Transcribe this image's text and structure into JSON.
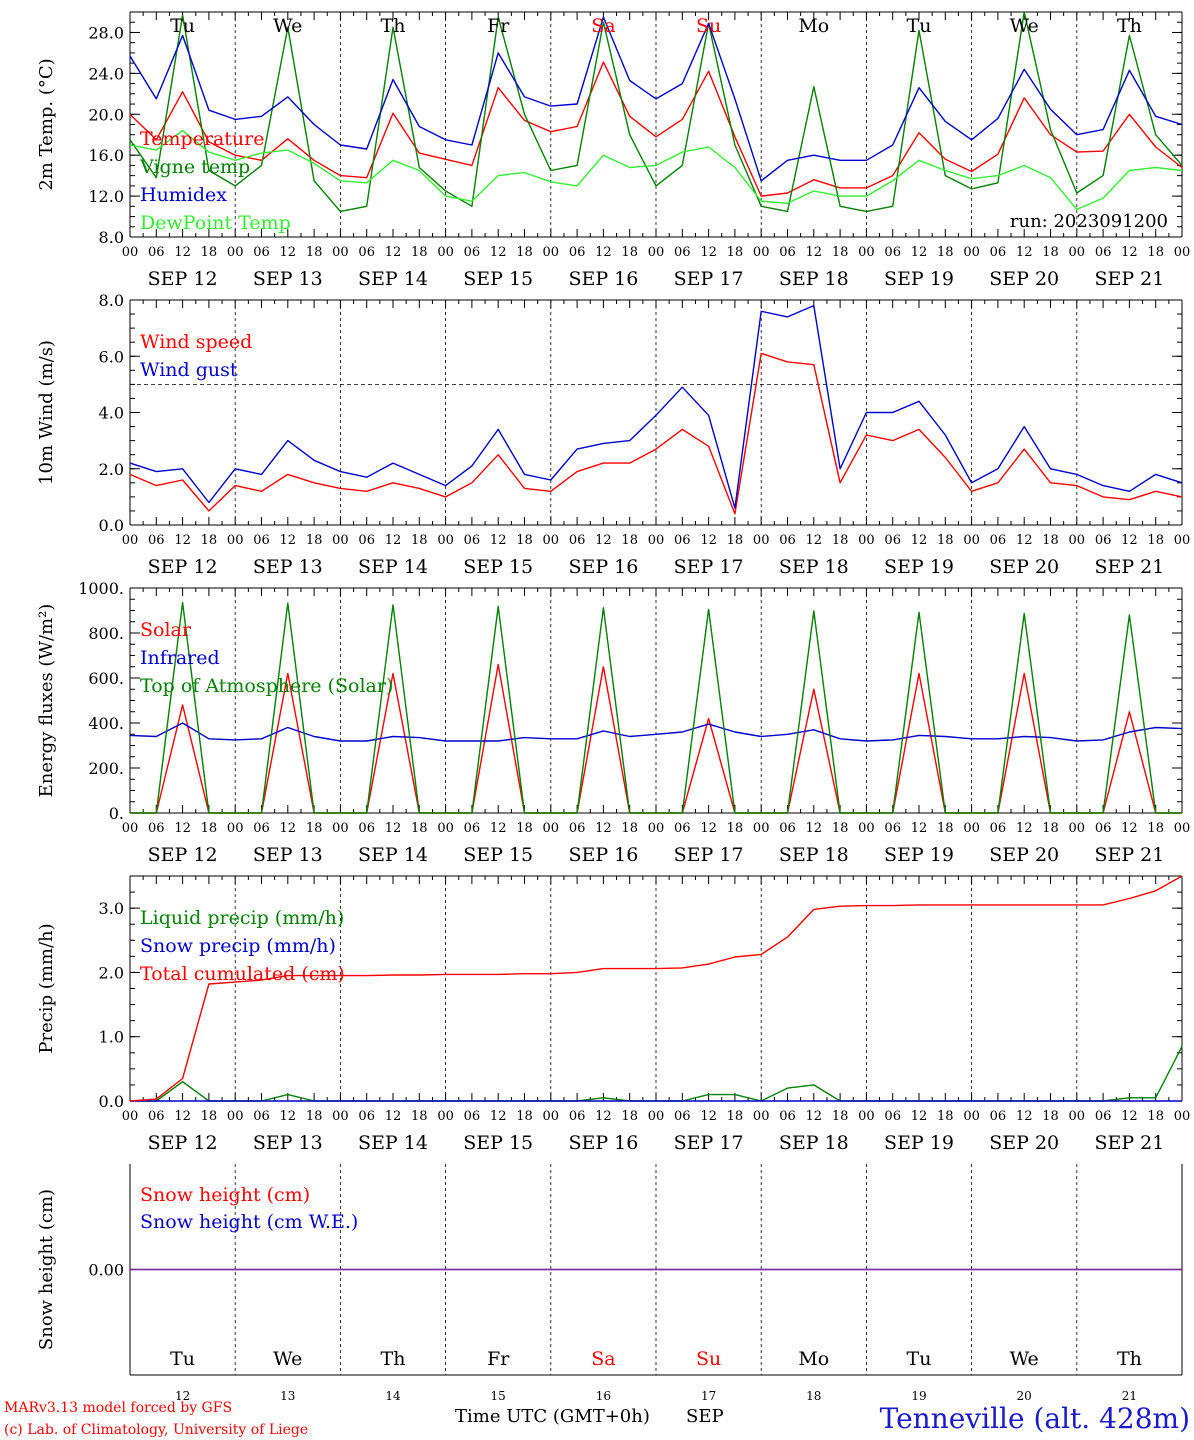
{
  "days": {
    "dates": [
      "SEP 12",
      "SEP 13",
      "SEP 14",
      "SEP 15",
      "SEP 16",
      "SEP 17",
      "SEP 18",
      "SEP 19",
      "SEP 20",
      "SEP 21"
    ],
    "weekdays": [
      "Tu",
      "We",
      "Th",
      "Fr",
      "Sa",
      "Su",
      "Mo",
      "Tu",
      "We",
      "Th"
    ],
    "weekend_flags": [
      false,
      false,
      false,
      false,
      true,
      true,
      false,
      false,
      false,
      false
    ],
    "day_numbers": [
      "12",
      "13",
      "14",
      "15",
      "16",
      "17",
      "18",
      "19",
      "20",
      "21"
    ],
    "hour_labels": [
      "00",
      "06",
      "12",
      "18"
    ],
    "end_hour_label": "00",
    "month_label": "SEP"
  },
  "colors": {
    "red": "#ff0000",
    "green": "#008000",
    "blue": "#0000cc",
    "lightgreen": "#33ee33",
    "purple": "#8030a0",
    "title_blue": "#1a1acc"
  },
  "run_label": "run: 2023091200",
  "footer": {
    "credit1": "MARv3.13 model forced by GFS",
    "credit2": "(c) Lab. of Climatology, University of Liege",
    "xlabel": "Time UTC (GMT+0h)",
    "station": "Tenneville (alt. 428m)"
  },
  "chart_data": [
    {
      "type": "line",
      "id": "temp",
      "ylabel": "2m Temp. (°C)",
      "ylim": [
        8,
        30
      ],
      "yticks": [
        8,
        12,
        16,
        20,
        24,
        28
      ],
      "ytick_labels": [
        "8.0",
        "12.0",
        "16.0",
        "20.0",
        "24.0",
        "28.0"
      ],
      "x_hours": [
        0,
        6,
        12,
        18,
        24,
        30,
        36,
        42,
        48,
        54,
        60,
        66,
        72,
        78,
        84,
        90,
        96,
        102,
        108,
        114,
        120,
        126,
        132,
        138,
        144,
        150,
        156,
        162,
        168,
        174,
        180,
        186,
        192,
        198,
        204,
        210,
        216,
        222,
        228,
        234,
        240
      ],
      "series": [
        {
          "name": "Temperature",
          "color": "red",
          "values": [
            20,
            17.5,
            22.2,
            17.3,
            16,
            15.5,
            17.6,
            15.5,
            14,
            13.8,
            20.1,
            16.2,
            15.6,
            15,
            22.6,
            19.4,
            18.3,
            18.8,
            25.1,
            19.8,
            17.8,
            19.5,
            24.2,
            17.8,
            12,
            12.3,
            13.6,
            12.8,
            12.8,
            14,
            18.2,
            15.6,
            14.4,
            16.1,
            21.6,
            18,
            16.3,
            16.4,
            20,
            16.8,
            14.8
          ]
        },
        {
          "name": "Vigne temp",
          "color": "green",
          "values": [
            17.5,
            13.8,
            29.7,
            14.5,
            13,
            15,
            28.5,
            13.5,
            10.5,
            11,
            28.5,
            14.8,
            12.5,
            11,
            29.5,
            20,
            14.5,
            15,
            29,
            18,
            13,
            15,
            28.9,
            17,
            11,
            10.5,
            22.7,
            11,
            10.5,
            11,
            28.2,
            14,
            12.7,
            13.3,
            30,
            18.5,
            12.3,
            14,
            27.7,
            18,
            15
          ]
        },
        {
          "name": "Humidex",
          "color": "blue",
          "values": [
            25.7,
            21.5,
            27.7,
            20.4,
            19.5,
            19.8,
            21.7,
            19,
            17,
            16.6,
            23.4,
            18.8,
            17.5,
            17,
            26,
            21.7,
            20.8,
            21,
            29.5,
            23.3,
            21.5,
            23,
            28.9,
            21.5,
            13.5,
            15.5,
            16,
            15.5,
            15.5,
            17,
            22.6,
            19.3,
            17.5,
            19.6,
            24.4,
            20.5,
            18,
            18.5,
            24.3,
            19.8,
            19
          ]
        },
        {
          "name": "DewPoint Temp",
          "color": "lightgreen",
          "values": [
            17,
            16.5,
            18.4,
            16.3,
            15.5,
            16.2,
            16.5,
            15.2,
            13.5,
            13.3,
            15.5,
            14.5,
            12,
            11.5,
            14,
            14.3,
            13.4,
            13,
            16,
            14.8,
            15,
            16.3,
            16.8,
            14.8,
            11.5,
            11.3,
            12.5,
            12,
            12,
            13.5,
            15.5,
            14.5,
            13.7,
            14,
            15,
            13.8,
            10.7,
            11.8,
            14.5,
            14.8,
            14.5
          ]
        }
      ]
    },
    {
      "type": "line",
      "id": "wind",
      "ylabel": "10m Wind (m/s)",
      "ylim": [
        0,
        8
      ],
      "yticks": [
        0,
        2,
        4,
        6,
        8
      ],
      "ytick_labels": [
        "0.0",
        "2.0",
        "4.0",
        "6.0",
        "8.0"
      ],
      "reference_line": 5,
      "x_hours": [
        0,
        6,
        12,
        18,
        24,
        30,
        36,
        42,
        48,
        54,
        60,
        66,
        72,
        78,
        84,
        90,
        96,
        102,
        108,
        114,
        120,
        126,
        132,
        138,
        144,
        150,
        156,
        162,
        168,
        174,
        180,
        186,
        192,
        198,
        204,
        210,
        216,
        222,
        228,
        234,
        240
      ],
      "series": [
        {
          "name": "Wind speed",
          "color": "red",
          "values": [
            1.8,
            1.4,
            1.6,
            0.5,
            1.4,
            1.2,
            1.8,
            1.5,
            1.3,
            1.2,
            1.5,
            1.3,
            1,
            1.5,
            2.5,
            1.3,
            1.2,
            1.9,
            2.2,
            2.2,
            2.7,
            3.4,
            2.8,
            0.4,
            6.1,
            5.8,
            5.7,
            1.5,
            3.2,
            3,
            3.4,
            2.4,
            1.2,
            1.5,
            2.7,
            1.5,
            1.4,
            1,
            0.9,
            1.2,
            1
          ]
        },
        {
          "name": "Wind gust",
          "color": "blue",
          "values": [
            2.2,
            1.9,
            2,
            0.8,
            2,
            1.8,
            3,
            2.3,
            1.9,
            1.7,
            2.2,
            1.8,
            1.4,
            2.1,
            3.4,
            1.8,
            1.6,
            2.7,
            2.9,
            3,
            3.9,
            4.9,
            3.9,
            0.6,
            7.6,
            7.4,
            7.8,
            2,
            4,
            4,
            4.4,
            3.2,
            1.5,
            2,
            3.5,
            2,
            1.8,
            1.4,
            1.2,
            1.8,
            1.5
          ]
        }
      ]
    },
    {
      "type": "line",
      "id": "energy",
      "ylabel": "Energy fluxes (W/m²)",
      "ylim": [
        0,
        1000
      ],
      "yticks": [
        0,
        200,
        400,
        600,
        800,
        1000
      ],
      "ytick_labels": [
        "0.",
        "200.",
        "400.",
        "600.",
        "800.",
        "1000."
      ],
      "x_hours": [
        0,
        6,
        12,
        18,
        24,
        30,
        36,
        42,
        48,
        54,
        60,
        66,
        72,
        78,
        84,
        90,
        96,
        102,
        108,
        114,
        120,
        126,
        132,
        138,
        144,
        150,
        156,
        162,
        168,
        174,
        180,
        186,
        192,
        198,
        204,
        210,
        216,
        222,
        228,
        234,
        240
      ],
      "series": [
        {
          "name": "Solar",
          "color": "red",
          "values": [
            0,
            0,
            480,
            0,
            0,
            0,
            620,
            0,
            0,
            0,
            620,
            0,
            0,
            0,
            660,
            0,
            0,
            0,
            650,
            0,
            0,
            0,
            420,
            0,
            0,
            0,
            550,
            0,
            0,
            0,
            620,
            0,
            0,
            0,
            620,
            0,
            0,
            0,
            450,
            0,
            0
          ]
        },
        {
          "name": "Infrared",
          "color": "blue",
          "values": [
            345,
            340,
            400,
            330,
            325,
            330,
            380,
            340,
            320,
            320,
            340,
            335,
            320,
            320,
            320,
            335,
            330,
            330,
            365,
            340,
            350,
            360,
            395,
            360,
            340,
            350,
            370,
            330,
            320,
            325,
            345,
            340,
            330,
            330,
            340,
            335,
            320,
            325,
            360,
            380,
            375
          ]
        },
        {
          "name": "Top of Atmosphere (Solar)",
          "color": "green",
          "values": [
            0,
            0,
            935,
            0,
            0,
            0,
            933,
            0,
            0,
            0,
            925,
            0,
            0,
            0,
            918,
            0,
            0,
            0,
            912,
            0,
            0,
            0,
            905,
            0,
            0,
            0,
            898,
            0,
            0,
            0,
            892,
            0,
            0,
            0,
            886,
            0,
            0,
            0,
            880,
            0,
            0
          ]
        }
      ]
    },
    {
      "type": "line",
      "id": "precip",
      "ylabel": "Precip (mm/h)",
      "ylim": [
        0,
        3.5
      ],
      "yticks": [
        0,
        1,
        2,
        3
      ],
      "ytick_labels": [
        "0.0",
        "1.0",
        "2.0",
        "3.0"
      ],
      "x_hours": [
        0,
        6,
        12,
        18,
        24,
        30,
        36,
        42,
        48,
        54,
        60,
        66,
        72,
        78,
        84,
        90,
        96,
        102,
        108,
        114,
        120,
        126,
        132,
        138,
        144,
        150,
        156,
        162,
        168,
        174,
        180,
        186,
        192,
        198,
        204,
        210,
        216,
        222,
        228,
        234,
        240
      ],
      "series": [
        {
          "name": "Liquid precip (mm/h)",
          "color": "green",
          "values": [
            0,
            0,
            0.3,
            0,
            0,
            0,
            0.1,
            0,
            0,
            0,
            0,
            0,
            0,
            0,
            0,
            0,
            0,
            0,
            0.05,
            0,
            0,
            0,
            0.1,
            0.1,
            0,
            0.2,
            0.25,
            0,
            0,
            0,
            0,
            0,
            0,
            0,
            0,
            0,
            0,
            0,
            0.05,
            0.05,
            0.85
          ]
        },
        {
          "name": "Snow precip (mm/h)",
          "color": "blue",
          "values": [
            0,
            0,
            0,
            0,
            0,
            0,
            0,
            0,
            0,
            0,
            0,
            0,
            0,
            0,
            0,
            0,
            0,
            0,
            0,
            0,
            0,
            0,
            0,
            0,
            0,
            0,
            0,
            0,
            0,
            0,
            0,
            0,
            0,
            0,
            0,
            0,
            0,
            0,
            0,
            0,
            0
          ]
        },
        {
          "name": "Total cumulated (cm)",
          "color": "red",
          "values": [
            0,
            0.03,
            0.35,
            1.82,
            1.85,
            1.88,
            1.95,
            1.95,
            1.95,
            1.95,
            1.96,
            1.96,
            1.97,
            1.97,
            1.97,
            1.98,
            1.98,
            2.0,
            2.06,
            2.06,
            2.06,
            2.07,
            2.13,
            2.24,
            2.28,
            2.55,
            2.98,
            3.03,
            3.04,
            3.04,
            3.05,
            3.05,
            3.05,
            3.05,
            3.05,
            3.05,
            3.05,
            3.05,
            3.15,
            3.27,
            3.5
          ]
        }
      ]
    },
    {
      "type": "line",
      "id": "snow",
      "ylabel": "Snow height (cm)",
      "ylim": [
        -1,
        1
      ],
      "yticks": [
        0
      ],
      "ytick_labels": [
        "0.00"
      ],
      "x_hours": [
        0,
        240
      ],
      "series": [
        {
          "name": "Snow height (cm)",
          "color": "red",
          "values": [
            0,
            0
          ]
        },
        {
          "name": "Snow height (cm W.E.)",
          "color": "blue",
          "values": [
            0,
            0
          ]
        }
      ]
    }
  ]
}
